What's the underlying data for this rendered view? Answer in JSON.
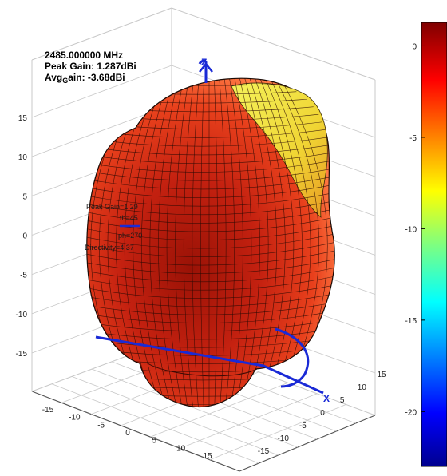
{
  "header": {
    "frequency": "2485.000000 MHz",
    "peak_gain": "Peak Gain: 1.287dBi",
    "avg_prefix": "Avg",
    "avg_subscript": "G",
    "avg_suffix": "ain: -3.68dBi"
  },
  "annotation": {
    "peak_gain": "Peak Gain=1.29",
    "theta": "th=45",
    "phi": "ph=270",
    "directivity": "Directivity=4.37"
  },
  "axes_letters": {
    "z": "Z",
    "x": "X"
  },
  "colors": {
    "surface_dark": "#b01808",
    "surface_mid": "#e53a1a",
    "surface_light": "#ff6a3a",
    "surface_yellow": "#f2f03a",
    "axis_blue": "#1a2ad6",
    "grid": "#c8c8c8"
  },
  "chart_data": {
    "type": "surface3d",
    "title": "",
    "xlabel": "",
    "ylabel": "",
    "z_ticks": [
      15,
      10,
      5,
      0,
      -5,
      -10,
      -15
    ],
    "x_ticks": [
      -15,
      -10,
      -5,
      0,
      5,
      10,
      15
    ],
    "y_ticks": [
      15,
      10,
      5,
      0,
      -5,
      -10,
      -15
    ],
    "colorbar": {
      "ticks": [
        0,
        -5,
        -10,
        -15,
        -20
      ],
      "range": [
        -23,
        1.287
      ],
      "colormap": "jet"
    },
    "peak_marker": {
      "theta": 45,
      "phi": 270,
      "peak_gain": 1.29,
      "directivity": 4.37
    }
  }
}
